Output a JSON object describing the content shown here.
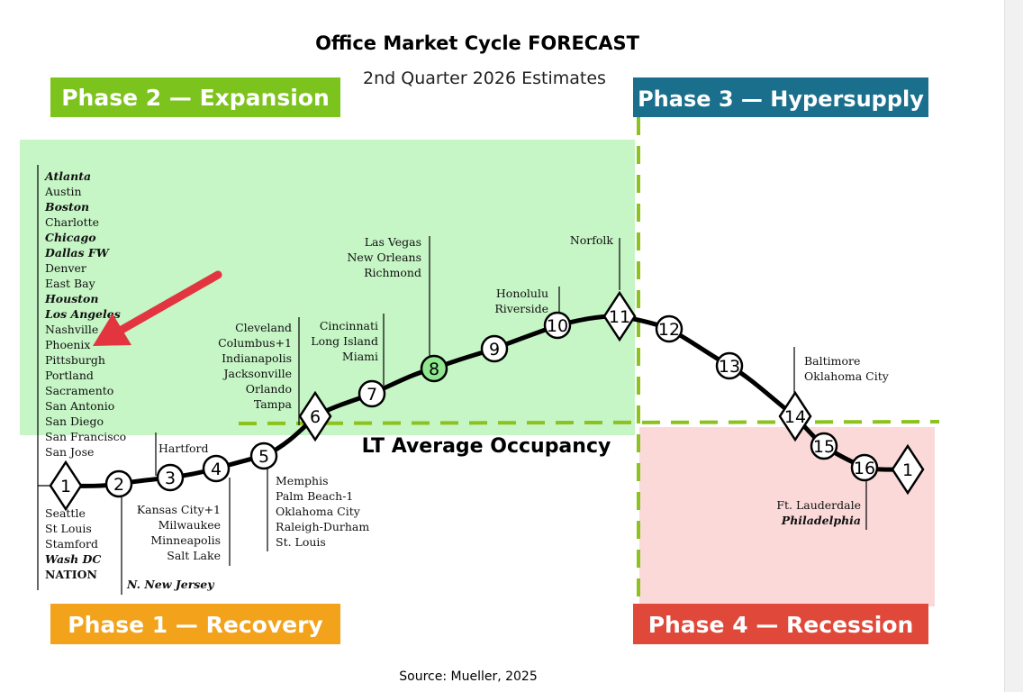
{
  "title": "Office Market Cycle FORECAST",
  "subtitle": "2nd Quarter 2026 Estimates",
  "source": "Source: Mueller, 2025",
  "lt_label": "LT Average Occupancy",
  "phases": {
    "p1": {
      "label": "Phase 1 — Recovery",
      "color": "#f2a31b"
    },
    "p2": {
      "label": "Phase 2 — Expansion",
      "color": "#7dc31e"
    },
    "p3": {
      "label": "Phase 3 — Hypersupply",
      "color": "#1a6f8c"
    },
    "p4": {
      "label": "Phase 4 — Recession",
      "color": "#e0493a"
    }
  },
  "zones": {
    "expansion_color": "#c6f5c6",
    "recession_color": "#fbd9d9",
    "dash_color": "#8cc21e"
  },
  "highlight_color": "#8fe88f",
  "arrow_color": "#e23540",
  "cycle_points": [
    "1",
    "2",
    "3",
    "4",
    "5",
    "6",
    "7",
    "8",
    "9",
    "10",
    "11",
    "12",
    "13",
    "14",
    "15",
    "16",
    "1"
  ],
  "groups": {
    "p2_list": [
      {
        "name": "Atlanta",
        "style": "bi"
      },
      {
        "name": "Austin",
        "style": ""
      },
      {
        "name": "Boston",
        "style": "bi"
      },
      {
        "name": "Charlotte",
        "style": ""
      },
      {
        "name": "Chicago",
        "style": "bi"
      },
      {
        "name": "Dallas FW",
        "style": "bi"
      },
      {
        "name": "Denver",
        "style": ""
      },
      {
        "name": "East Bay",
        "style": ""
      },
      {
        "name": "Houston",
        "style": "bi"
      },
      {
        "name": "Los Angeles",
        "style": "bi"
      },
      {
        "name": "Nashville",
        "style": ""
      },
      {
        "name": "Phoenix",
        "style": ""
      },
      {
        "name": "Pittsburgh",
        "style": ""
      },
      {
        "name": "Portland",
        "style": ""
      },
      {
        "name": "Sacramento",
        "style": ""
      },
      {
        "name": "San Antonio",
        "style": ""
      },
      {
        "name": "San Diego",
        "style": ""
      },
      {
        "name": "San Francisco",
        "style": ""
      },
      {
        "name": "San Jose",
        "style": ""
      }
    ],
    "p1_below": [
      {
        "name": "Seattle",
        "style": ""
      },
      {
        "name": "St Louis",
        "style": ""
      },
      {
        "name": "Stamford",
        "style": ""
      },
      {
        "name": "Wash DC",
        "style": "bi"
      },
      {
        "name": "NATION",
        "style": "b"
      }
    ],
    "p2_below": [
      {
        "name": "N. New Jersey",
        "style": "bi"
      }
    ],
    "p3_above": [
      {
        "name": "Hartford",
        "style": ""
      }
    ],
    "p4_below": [
      {
        "name": "Kansas City+1",
        "style": ""
      },
      {
        "name": "Milwaukee",
        "style": ""
      },
      {
        "name": "Minneapolis",
        "style": ""
      },
      {
        "name": "Salt Lake",
        "style": ""
      }
    ],
    "p5_below": [
      {
        "name": "Memphis",
        "style": ""
      },
      {
        "name": "Palm Beach-1",
        "style": ""
      },
      {
        "name": "Oklahoma City",
        "style": ""
      },
      {
        "name": "Raleigh-Durham",
        "style": ""
      },
      {
        "name": "St. Louis",
        "style": ""
      }
    ],
    "p6_above": [
      {
        "name": "Cleveland",
        "style": ""
      },
      {
        "name": "Columbus+1",
        "style": ""
      },
      {
        "name": "Indianapolis",
        "style": ""
      },
      {
        "name": "Jacksonville",
        "style": ""
      },
      {
        "name": "Orlando",
        "style": ""
      },
      {
        "name": "Tampa",
        "style": ""
      }
    ],
    "p7_above": [
      {
        "name": "Cincinnati",
        "style": ""
      },
      {
        "name": "Long Island",
        "style": ""
      },
      {
        "name": "Miami",
        "style": ""
      }
    ],
    "p8_above": [
      {
        "name": "Las Vegas",
        "style": ""
      },
      {
        "name": "New Orleans",
        "style": ""
      },
      {
        "name": "Richmond",
        "style": ""
      }
    ],
    "p10_above": [
      {
        "name": "Honolulu",
        "style": ""
      },
      {
        "name": "Riverside",
        "style": ""
      }
    ],
    "p11_above": [
      {
        "name": "Norfolk",
        "style": ""
      }
    ],
    "p14_above": [
      {
        "name": "Baltimore",
        "style": ""
      },
      {
        "name": "Oklahoma City",
        "style": ""
      }
    ],
    "p16_below": [
      {
        "name": "Ft. Lauderdale",
        "style": ""
      },
      {
        "name": "Philadelphia",
        "style": "bi"
      }
    ]
  }
}
